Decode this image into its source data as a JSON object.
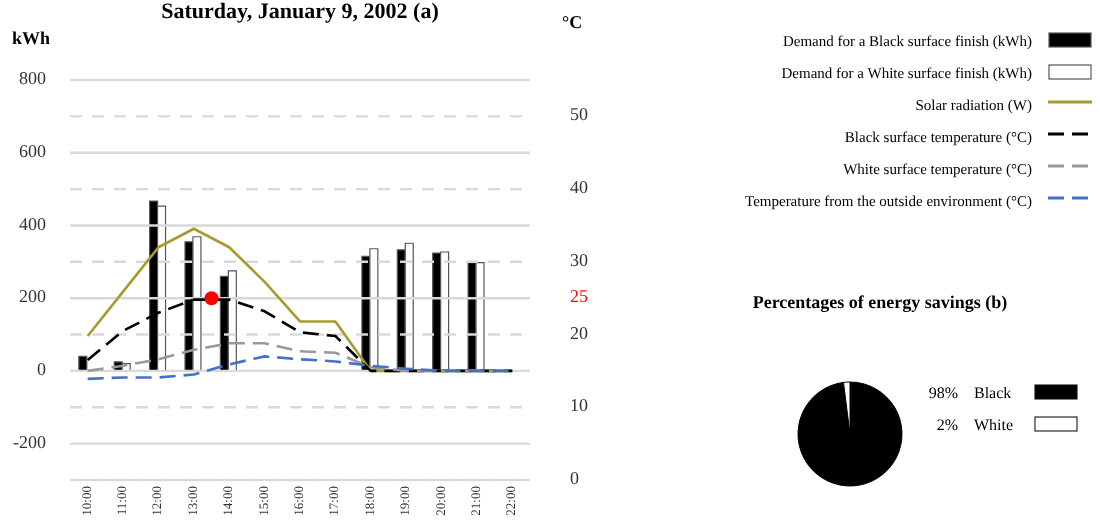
{
  "chart_data": [
    {
      "type": "bar",
      "title": "Saturday, January 9, 2002 (a)",
      "ylabel": "kWh",
      "y2label": "°C",
      "x": [
        10,
        11,
        12,
        13,
        14,
        15,
        16,
        17,
        18,
        19,
        20,
        21,
        22
      ],
      "xlim": [
        9.5,
        22.5
      ],
      "xticks": [
        {
          "value": 10,
          "label": "10:00"
        },
        {
          "value": 11,
          "label": "11:00"
        },
        {
          "value": 12,
          "label": "12:00"
        },
        {
          "value": 13,
          "label": "13:00"
        },
        {
          "value": 14,
          "label": "14:00"
        },
        {
          "value": 15,
          "label": "15:00"
        },
        {
          "value": 16,
          "label": "16:00"
        },
        {
          "value": 17,
          "label": "17:00"
        },
        {
          "value": 18,
          "label": "18:00"
        },
        {
          "value": 19,
          "label": "19:00"
        },
        {
          "value": 20,
          "label": "20:00"
        },
        {
          "value": 21,
          "label": "21:00"
        },
        {
          "value": 22,
          "label": "22:00"
        }
      ],
      "ylim": [
        -300,
        800
      ],
      "yticks": [
        {
          "value": -300,
          "label": null
        },
        -200,
        {
          "value": -100,
          "label": null
        },
        0,
        {
          "value": 100,
          "label": null
        },
        200,
        {
          "value": 300,
          "label": null
        },
        400,
        {
          "value": 500,
          "label": null
        },
        600,
        {
          "value": 700,
          "label": null
        },
        800
      ],
      "y2lim": [
        0,
        55
      ],
      "y2ticks": [
        0,
        10,
        20,
        25,
        30,
        40,
        50
      ],
      "grid": "y",
      "legend": "right",
      "marker": "none",
      "series": [
        {
          "name": "Demand for a Black surface finish (kWh)",
          "type": "bar",
          "color": "#000000",
          "values": [
            40,
            25,
            467,
            355,
            260,
            null,
            null,
            null,
            315,
            333,
            324,
            298,
            null
          ]
        },
        {
          "name": "Demand for a White surface finish (kWh)",
          "type": "bar",
          "color": "#ffffff",
          "values": [
            null,
            20,
            453,
            369,
            275,
            null,
            null,
            null,
            336,
            351,
            327,
            298,
            null
          ]
        },
        {
          "name": "Solar radiation (W)",
          "type": "line",
          "color": "#a89a2e",
          "line_style": "solid",
          "values": [
            96,
            218,
            340,
            391,
            340,
            245,
            136,
            136,
            0,
            0,
            0,
            0,
            0
          ]
        },
        {
          "name": "Black surface temperature (°C)",
          "type": "line",
          "axis": "y2",
          "color": "#000000",
          "line_style": "dashed",
          "values": [
            16.5,
            20.5,
            23,
            24.8,
            24.8,
            23.2,
            20.3,
            19.8,
            15,
            15,
            15,
            15,
            15
          ]
        },
        {
          "name": "White surface temperature (°C)",
          "type": "line",
          "axis": "y2",
          "color": "#999999",
          "line_style": "dashed",
          "values": [
            15,
            15.7,
            16.6,
            17.9,
            18.8,
            18.8,
            17.7,
            17.5,
            15.5,
            15,
            15,
            15,
            15
          ]
        },
        {
          "name": "Temperature from the outside environment (°C)",
          "type": "line",
          "axis": "y2",
          "color": "#4472c4",
          "line_style": "dashed",
          "values": [
            13.9,
            14.1,
            14.1,
            14.5,
            15.9,
            17,
            16.6,
            16.3,
            15.7,
            15.3,
            15,
            15,
            15
          ]
        },
        {
          "type": "scatter",
          "axis": "y2",
          "color": "#ff0000",
          "marker": "circle",
          "x": [
            13.5
          ],
          "values": [
            25
          ]
        }
      ]
    },
    {
      "type": "pie",
      "title": "Percentages of energy savings (b)",
      "categories": [
        "Black",
        "White"
      ],
      "values": [
        98,
        2
      ],
      "colors": [
        "#000000",
        "#ffffff"
      ],
      "value_labels": [
        "98%",
        "2%"
      ],
      "legend": "right"
    }
  ]
}
